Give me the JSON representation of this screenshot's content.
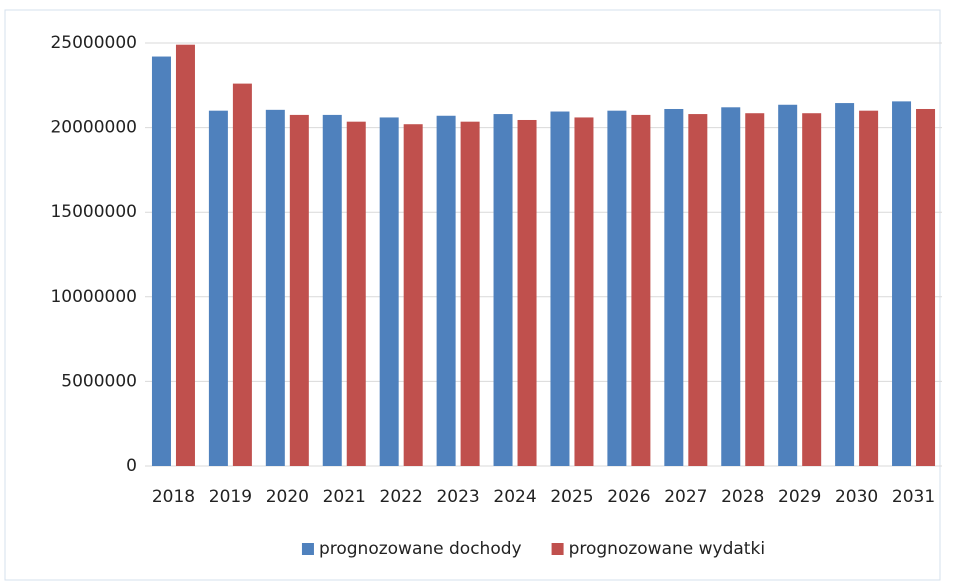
{
  "chart_data": {
    "type": "bar",
    "categories": [
      "2018",
      "2019",
      "2020",
      "2021",
      "2022",
      "2023",
      "2024",
      "2025",
      "2026",
      "2027",
      "2028",
      "2029",
      "2030",
      "2031"
    ],
    "series": [
      {
        "name": "prognozowane dochody",
        "color": "#4f81bd",
        "values": [
          24200000,
          21000000,
          21050000,
          20750000,
          20600000,
          20700000,
          20800000,
          20950000,
          21000000,
          21100000,
          21200000,
          21350000,
          21450000,
          21550000
        ]
      },
      {
        "name": "prognozowane wydatki",
        "color": "#c0504d",
        "values": [
          24900000,
          22600000,
          20750000,
          20350000,
          20200000,
          20350000,
          20450000,
          20600000,
          20750000,
          20800000,
          20850000,
          20850000,
          21000000,
          21100000
        ]
      }
    ],
    "ylim": [
      0,
      25000000
    ],
    "yticks": [
      0,
      5000000,
      10000000,
      15000000,
      20000000,
      25000000
    ],
    "grid": true,
    "legend": "bottom"
  }
}
